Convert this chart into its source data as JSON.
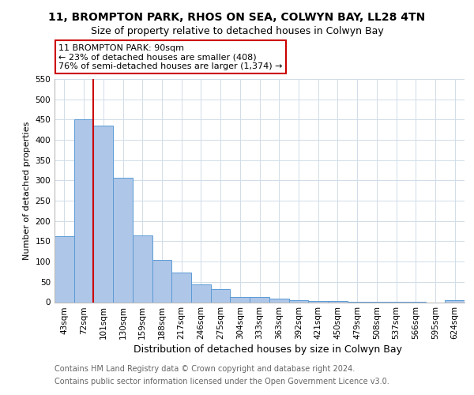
{
  "title1": "11, BROMPTON PARK, RHOS ON SEA, COLWYN BAY, LL28 4TN",
  "title2": "Size of property relative to detached houses in Colwyn Bay",
  "xlabel": "Distribution of detached houses by size in Colwyn Bay",
  "ylabel": "Number of detached properties",
  "bar_labels": [
    "43sqm",
    "72sqm",
    "101sqm",
    "130sqm",
    "159sqm",
    "188sqm",
    "217sqm",
    "246sqm",
    "275sqm",
    "304sqm",
    "333sqm",
    "363sqm",
    "392sqm",
    "421sqm",
    "450sqm",
    "479sqm",
    "508sqm",
    "537sqm",
    "566sqm",
    "595sqm",
    "624sqm"
  ],
  "bar_values": [
    163,
    450,
    435,
    307,
    165,
    105,
    73,
    44,
    33,
    12,
    12,
    9,
    4,
    2,
    2,
    1,
    1,
    1,
    1,
    0,
    5
  ],
  "bar_color": "#aec6e8",
  "bar_edge_color": "#5b9bd5",
  "vline_color": "#cc0000",
  "annotation_text": "11 BROMPTON PARK: 90sqm\n← 23% of detached houses are smaller (408)\n76% of semi-detached houses are larger (1,374) →",
  "annotation_box_color": "#ffffff",
  "annotation_box_edge": "#cc0000",
  "ylim": [
    0,
    550
  ],
  "yticks": [
    0,
    50,
    100,
    150,
    200,
    250,
    300,
    350,
    400,
    450,
    500,
    550
  ],
  "footnote1": "Contains HM Land Registry data © Crown copyright and database right 2024.",
  "footnote2": "Contains public sector information licensed under the Open Government Licence v3.0.",
  "bg_color": "#ffffff",
  "grid_color": "#d0dce8",
  "title1_fontsize": 10,
  "title2_fontsize": 9,
  "xlabel_fontsize": 9,
  "ylabel_fontsize": 8,
  "tick_fontsize": 7.5,
  "annotation_fontsize": 8,
  "footnote_fontsize": 7
}
